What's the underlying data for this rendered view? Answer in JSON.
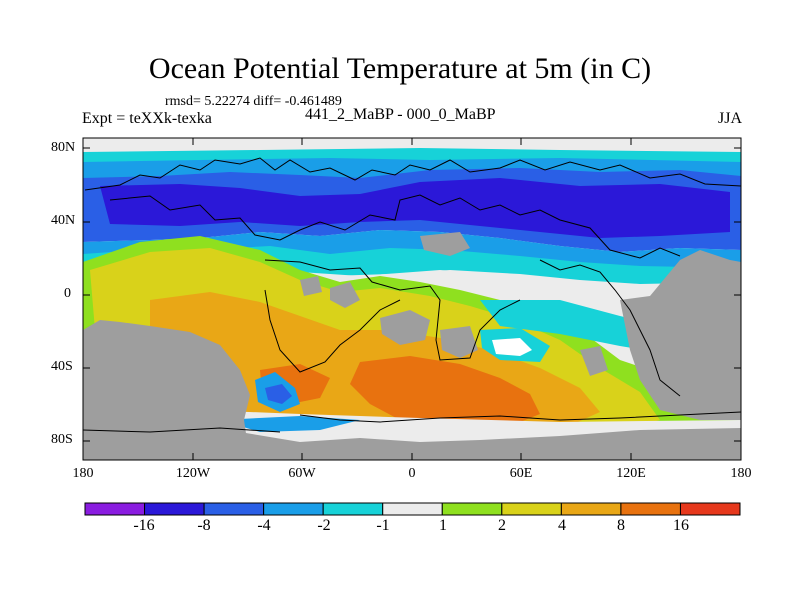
{
  "title": "Ocean Potential Temperature at 5m (in C)",
  "stats": "rmsd= 5.22274 diff= -0.461489",
  "left_label": "Expt = teXXk-texka",
  "center_label": "441_2_MaBP - 000_0_MaBP",
  "right_label": "JJA",
  "lat_labels": [
    {
      "text": "80N"
    },
    {
      "text": "40N"
    },
    {
      "text": "0"
    },
    {
      "text": "40S"
    },
    {
      "text": "80S"
    }
  ],
  "lon_labels": [
    {
      "text": "180"
    },
    {
      "text": "120W"
    },
    {
      "text": "60W"
    },
    {
      "text": "0"
    },
    {
      "text": "60E"
    },
    {
      "text": "120E"
    },
    {
      "text": "180"
    }
  ],
  "colorbar": {
    "colors": [
      "#8a1ce0",
      "#2b18d8",
      "#2a5fe6",
      "#1a9ee8",
      "#17d2d8",
      "#ececec",
      "#8fe01f",
      "#d9d21a",
      "#e9a716",
      "#e8720f",
      "#e6381c"
    ],
    "labels": [
      "-16",
      "-8",
      "-4",
      "-2",
      "-1",
      "1",
      "2",
      "4",
      "8",
      "16"
    ]
  },
  "colors": {
    "land": "#9e9e9e",
    "deep_blue": "#2b18d8",
    "blue": "#2a5fe6",
    "lightblue": "#1a9ee8",
    "cyan": "#17d2d8",
    "neutral": "#ececec",
    "green": "#8fe01f",
    "yellow": "#d9d21a",
    "orange": "#e9a716",
    "darkorange": "#e8720f",
    "red": "#e6381c",
    "purple": "#8a1ce0"
  }
}
